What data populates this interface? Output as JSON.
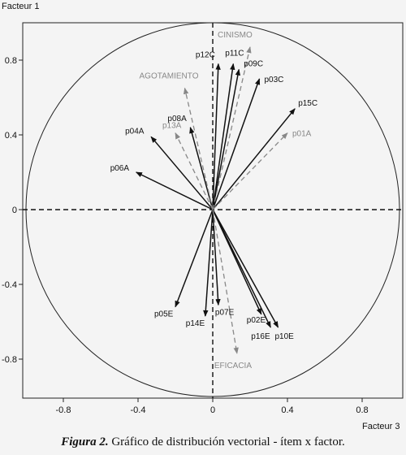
{
  "chart_data": {
    "type": "vector-plot",
    "xlabel": "Facteur 3",
    "ylabel": "Facteur 1",
    "xlim": [
      -1.0,
      1.0
    ],
    "ylim": [
      -1.0,
      1.0
    ],
    "xticks": [
      "-0.8",
      "-0.4",
      "0",
      "0.4",
      "0.8"
    ],
    "yticks": [
      "0.8",
      "0.4",
      "0",
      "-0.4",
      "-0.8"
    ],
    "xtick_values": [
      -0.8,
      -0.4,
      0,
      0.4,
      0.8
    ],
    "ytick_values": [
      0.8,
      0.4,
      0,
      -0.4,
      -0.8
    ],
    "circle_radius": 1.0,
    "vectors": [
      {
        "label": "p12C",
        "x": 0.03,
        "y": 0.78,
        "style": "solid"
      },
      {
        "label": "p11C",
        "x": 0.11,
        "y": 0.78,
        "style": "solid"
      },
      {
        "label": "p09C",
        "x": 0.14,
        "y": 0.75,
        "style": "solid"
      },
      {
        "label": "p03C",
        "x": 0.25,
        "y": 0.7,
        "style": "solid"
      },
      {
        "label": "p15C",
        "x": 0.44,
        "y": 0.54,
        "style": "solid"
      },
      {
        "label": "p08A",
        "x": -0.12,
        "y": 0.44,
        "style": "solid"
      },
      {
        "label": "p04A",
        "x": -0.33,
        "y": 0.39,
        "style": "solid"
      },
      {
        "label": "p06A",
        "x": -0.41,
        "y": 0.2,
        "style": "solid"
      },
      {
        "label": "p13A",
        "x": -0.2,
        "y": 0.41,
        "style": "dashed"
      },
      {
        "label": "AGOTAMIENTO",
        "x": -0.15,
        "y": 0.65,
        "style": "dashed"
      },
      {
        "label": "CINISMO",
        "x": 0.2,
        "y": 0.87,
        "style": "dashed"
      },
      {
        "label": "p01A",
        "x": 0.4,
        "y": 0.41,
        "style": "dashed"
      },
      {
        "label": "p05E",
        "x": -0.2,
        "y": -0.52,
        "style": "solid"
      },
      {
        "label": "p14E",
        "x": -0.04,
        "y": -0.57,
        "style": "solid"
      },
      {
        "label": "p07E",
        "x": 0.03,
        "y": -0.51,
        "style": "solid"
      },
      {
        "label": "p02E",
        "x": 0.26,
        "y": -0.56,
        "style": "solid"
      },
      {
        "label": "p16E",
        "x": 0.31,
        "y": -0.63,
        "style": "solid"
      },
      {
        "label": "p10E",
        "x": 0.35,
        "y": -0.63,
        "style": "solid"
      },
      {
        "label": "EFICACIA",
        "x": 0.13,
        "y": -0.77,
        "style": "dashed"
      }
    ],
    "colors": {
      "solid": "#111111",
      "dashed": "#888888",
      "background": "#f4f4f4"
    }
  },
  "caption": {
    "prefix": "Figura 2.",
    "text": " Gráfico de distribución vectorial - ítem x factor."
  }
}
